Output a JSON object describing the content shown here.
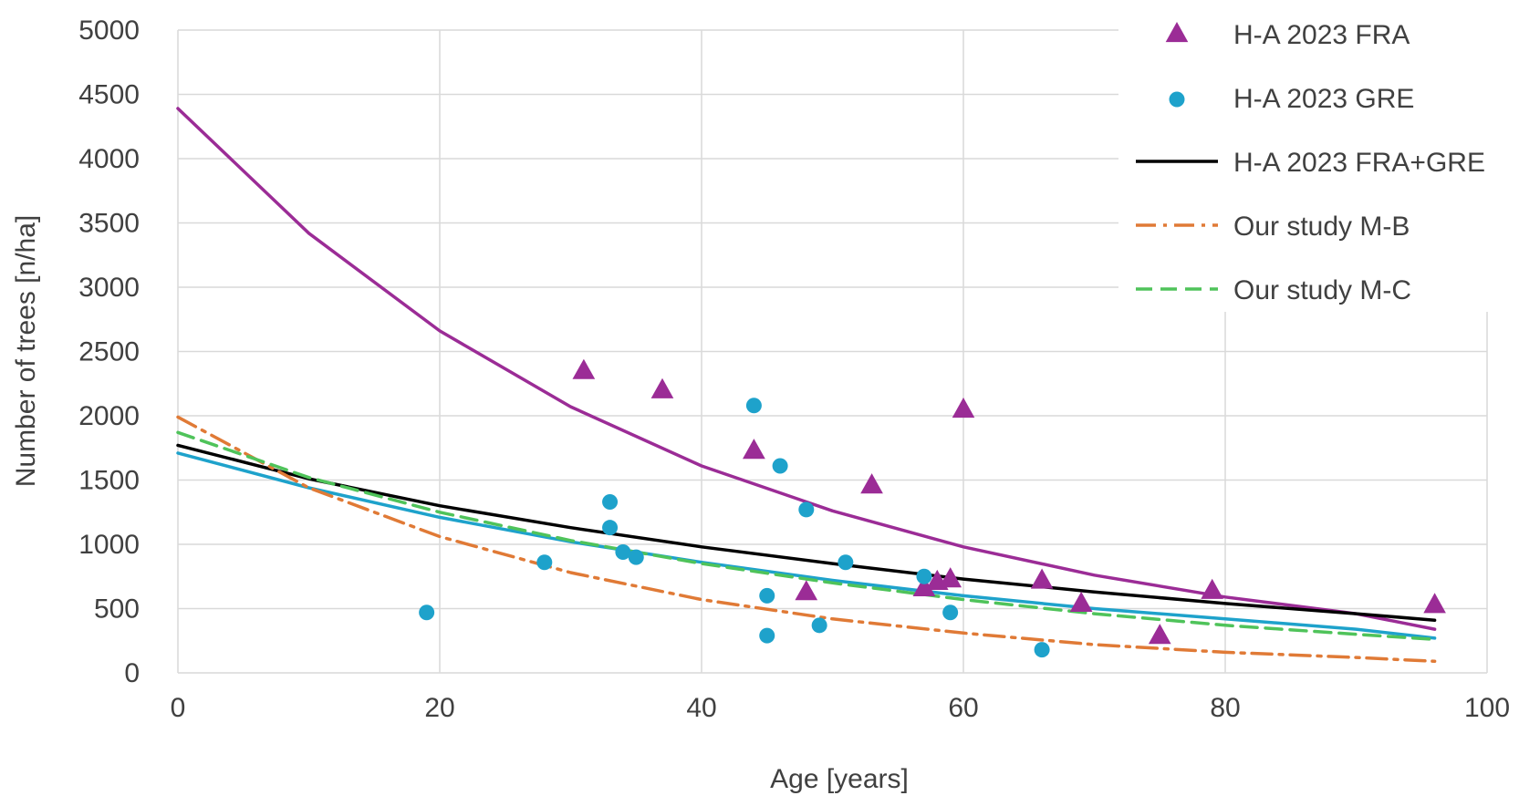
{
  "chart_data": {
    "type": "scatter",
    "title": "",
    "xlabel": "Age [years]",
    "ylabel": "Number of trees [n/ha]",
    "xlim": [
      0,
      100
    ],
    "ylim": [
      0,
      5000
    ],
    "xticks": [
      0,
      20,
      40,
      60,
      80,
      100
    ],
    "yticks": [
      0,
      500,
      1000,
      1500,
      2000,
      2500,
      3000,
      3500,
      4000,
      4500,
      5000
    ],
    "grid": true,
    "legend_position": "top-right",
    "series": [
      {
        "name": "H-A 2023 FRA",
        "kind": "scatter",
        "marker": "triangle",
        "color": "#9b2c96",
        "points": [
          [
            31,
            2350
          ],
          [
            37,
            2200
          ],
          [
            44,
            1730
          ],
          [
            48,
            630
          ],
          [
            53,
            1460
          ],
          [
            57,
            660
          ],
          [
            58,
            710
          ],
          [
            59,
            730
          ],
          [
            60,
            2050
          ],
          [
            66,
            720
          ],
          [
            69,
            540
          ],
          [
            75,
            290
          ],
          [
            79,
            640
          ],
          [
            96,
            530
          ]
        ]
      },
      {
        "name": "H-A 2023 GRE",
        "kind": "scatter",
        "marker": "circle",
        "color": "#1ea2cb",
        "points": [
          [
            19,
            470
          ],
          [
            28,
            860
          ],
          [
            33,
            1330
          ],
          [
            33,
            1130
          ],
          [
            34,
            940
          ],
          [
            35,
            900
          ],
          [
            44,
            2080
          ],
          [
            45,
            600
          ],
          [
            45,
            290
          ],
          [
            46,
            1610
          ],
          [
            48,
            1270
          ],
          [
            49,
            370
          ],
          [
            51,
            860
          ],
          [
            57,
            750
          ],
          [
            59,
            470
          ],
          [
            66,
            180
          ]
        ]
      },
      {
        "name": "H-A 2023 FRA trend",
        "kind": "line",
        "legend": false,
        "style": "solid",
        "color": "#9b2c96",
        "points": [
          [
            0,
            4390
          ],
          [
            10,
            3420
          ],
          [
            20,
            2660
          ],
          [
            30,
            2070
          ],
          [
            40,
            1610
          ],
          [
            50,
            1260
          ],
          [
            60,
            980
          ],
          [
            70,
            760
          ],
          [
            80,
            590
          ],
          [
            90,
            460
          ],
          [
            96,
            340
          ]
        ]
      },
      {
        "name": "H-A 2023 GRE trend",
        "kind": "line",
        "legend": false,
        "style": "solid",
        "color": "#1ea2cb",
        "points": [
          [
            0,
            1710
          ],
          [
            10,
            1440
          ],
          [
            20,
            1210
          ],
          [
            30,
            1020
          ],
          [
            40,
            860
          ],
          [
            50,
            720
          ],
          [
            60,
            600
          ],
          [
            70,
            500
          ],
          [
            80,
            420
          ],
          [
            90,
            340
          ],
          [
            96,
            270
          ]
        ]
      },
      {
        "name": "H-A 2023 FRA+GRE",
        "kind": "line",
        "style": "solid",
        "color": "#000000",
        "points": [
          [
            0,
            1770
          ],
          [
            10,
            1510
          ],
          [
            20,
            1300
          ],
          [
            30,
            1130
          ],
          [
            40,
            980
          ],
          [
            50,
            850
          ],
          [
            60,
            730
          ],
          [
            70,
            630
          ],
          [
            80,
            540
          ],
          [
            90,
            460
          ],
          [
            96,
            410
          ]
        ]
      },
      {
        "name": "Our study M-B",
        "kind": "line",
        "style": "dashdot",
        "color": "#e07a36",
        "points": [
          [
            0,
            1990
          ],
          [
            10,
            1440
          ],
          [
            20,
            1060
          ],
          [
            30,
            780
          ],
          [
            40,
            570
          ],
          [
            50,
            420
          ],
          [
            60,
            310
          ],
          [
            70,
            220
          ],
          [
            80,
            160
          ],
          [
            90,
            120
          ],
          [
            96,
            90
          ]
        ]
      },
      {
        "name": "Our study M-C",
        "kind": "line",
        "style": "dashed",
        "color": "#4fc35a",
        "points": [
          [
            0,
            1870
          ],
          [
            10,
            1520
          ],
          [
            20,
            1250
          ],
          [
            30,
            1030
          ],
          [
            40,
            850
          ],
          [
            50,
            700
          ],
          [
            60,
            570
          ],
          [
            70,
            460
          ],
          [
            80,
            370
          ],
          [
            90,
            300
          ],
          [
            96,
            260
          ]
        ]
      }
    ],
    "legend_entries": [
      {
        "label": "H-A 2023 FRA",
        "symbol": "triangle",
        "color": "#9b2c96"
      },
      {
        "label": "H-A 2023 GRE",
        "symbol": "circle",
        "color": "#1ea2cb"
      },
      {
        "label": "H-A 2023 FRA+GRE",
        "symbol": "solid",
        "color": "#000000"
      },
      {
        "label": "Our study M-B",
        "symbol": "dashdot",
        "color": "#e07a36"
      },
      {
        "label": "Our study M-C",
        "symbol": "dashed",
        "color": "#4fc35a"
      }
    ]
  }
}
